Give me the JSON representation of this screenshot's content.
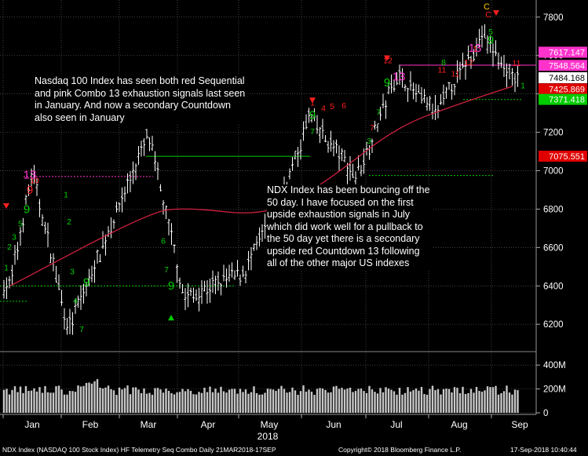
{
  "chart_data": {
    "type": "candlestick",
    "title": "NDX Index (NASDAQ 100 Stock Index) HF Telemetry Seq Combo Daily 21MAR2018-17SEP",
    "copyright": "Copyright© 2018 Bloomberg Finance L.P.",
    "timestamp": "17-Sep-2018 10:40:44",
    "year_label": "2018",
    "x_month_labels": [
      "Jan",
      "Feb",
      "Mar",
      "Apr",
      "May",
      "Jun",
      "Jul",
      "Aug",
      "Sep"
    ],
    "price_axis": {
      "ylim": [
        6070,
        7840
      ],
      "ticks": [
        "7800",
        "7600",
        "7400",
        "7200",
        "7000",
        "6800",
        "6600",
        "6400",
        "6200"
      ]
    },
    "volume_axis": {
      "ylim": [
        0,
        460
      ],
      "ticks": [
        "400M",
        "200M",
        "0"
      ]
    },
    "price_labels": [
      {
        "text": "7617.147",
        "value": 7617.147,
        "color": "#ff33cc"
      },
      {
        "text": "7548.564",
        "value": 7548.564,
        "color": "#ff33cc"
      },
      {
        "text": "7484.168",
        "value": 7484.168,
        "color": "#ffffff"
      },
      {
        "text": "7425.869",
        "value": 7425.869,
        "color": "#e00000"
      },
      {
        "text": "7371.418",
        "value": 7371.418,
        "color": "#00cc00"
      },
      {
        "text": "7075.551",
        "value": 7075.551,
        "color": "#e00000"
      }
    ],
    "key_points": [
      {
        "date": "early Jan",
        "close": 6400
      },
      {
        "date": "mid Jan",
        "close": 7000
      },
      {
        "date": "early Feb",
        "close": 6170
      },
      {
        "date": "mid Mar",
        "close": 7190
      },
      {
        "date": "early Apr",
        "close": 6330
      },
      {
        "date": "early May",
        "close": 6480
      },
      {
        "date": "late May",
        "close": 7000
      },
      {
        "date": "early Jun",
        "close": 7280
      },
      {
        "date": "late Jun",
        "close": 6970
      },
      {
        "date": "mid Jul",
        "close": 7500
      },
      {
        "date": "early Aug",
        "close": 7300
      },
      {
        "date": "late Aug",
        "close": 7700
      },
      {
        "date": "mid Sep",
        "close": 7484
      }
    ],
    "series": [
      {
        "name": "NDX daily bars",
        "color": "#ffffff"
      },
      {
        "name": "50-day moving average",
        "color": "#d02040"
      },
      {
        "name": "Volume",
        "color": "#c8c8c8"
      }
    ],
    "ma50_points": [
      {
        "date": "early Jan",
        "value": 6400
      },
      {
        "date": "mid Mar",
        "value": 6780
      },
      {
        "date": "early Apr",
        "value": 6810
      },
      {
        "date": "mid May",
        "value": 6760
      },
      {
        "date": "mid Jun",
        "value": 6970
      },
      {
        "date": "mid Jul",
        "value": 7230
      },
      {
        "date": "mid Aug",
        "value": 7350
      },
      {
        "date": "mid Sep",
        "value": 7440
      }
    ],
    "signal_labels": [
      "1",
      "2",
      "3",
      "4",
      "5",
      "6",
      "7",
      "8",
      "9",
      "10",
      "11",
      "12",
      "13",
      "C"
    ],
    "annotations": [
      "Nasdaq 100 Index has seen both red Sequential and pink Combo 13 exhaustion signals last seen in January.  And now a secondary Countdown also seen in January",
      "NDX Index has been bouncing off the 50 day. I have focused on the first upside exhaustion signals in July which did work well for a pullback to the 50 day yet there is a secondary upside red Countdown 13 following all of the other major US indexes"
    ]
  },
  "colors": {
    "background": "#000000",
    "bars": "#ffffff",
    "ma50": "#d02040",
    "grid": "#5a5a5a",
    "setup_green": "#00cc00",
    "count_red": "#ff2020",
    "combo_pink": "#ff33cc",
    "volume": "#c8c8c8"
  }
}
